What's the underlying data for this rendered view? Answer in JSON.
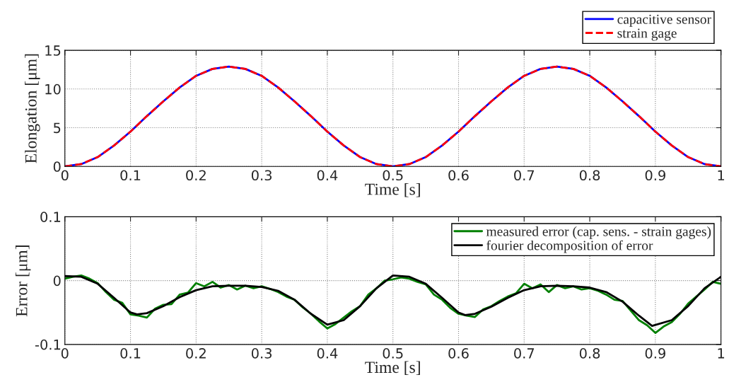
{
  "chart_data": [
    {
      "type": "line",
      "xlabel": "Time [s]",
      "ylabel": "Elongation [μm]",
      "xlim": [
        0,
        1
      ],
      "ylim": [
        0,
        15
      ],
      "xticks": [
        0,
        0.1,
        0.2,
        0.3,
        0.4,
        0.5,
        0.6,
        0.7,
        0.8,
        0.9,
        1
      ],
      "yticks": [
        0,
        5,
        10,
        15
      ],
      "grid": true,
      "legend": "top right",
      "x": [
        0,
        0.025,
        0.05,
        0.075,
        0.1,
        0.125,
        0.15,
        0.175,
        0.2,
        0.225,
        0.25,
        0.275,
        0.3,
        0.325,
        0.35,
        0.375,
        0.4,
        0.425,
        0.45,
        0.475,
        0.5,
        0.525,
        0.55,
        0.575,
        0.6,
        0.625,
        0.65,
        0.675,
        0.7,
        0.725,
        0.75,
        0.775,
        0.8,
        0.825,
        0.85,
        0.875,
        0.9,
        0.925,
        0.95,
        0.975,
        1
      ],
      "series": [
        {
          "name": "capacitive sensor",
          "color": "#0000ff",
          "line_style": "solid",
          "values": [
            0,
            0.3,
            1.2,
            2.7,
            4.5,
            6.5,
            8.4,
            10.2,
            11.7,
            12.6,
            12.9,
            12.6,
            11.7,
            10.2,
            8.4,
            6.5,
            4.5,
            2.7,
            1.2,
            0.3,
            0,
            0.3,
            1.2,
            2.7,
            4.5,
            6.5,
            8.4,
            10.2,
            11.7,
            12.6,
            12.9,
            12.6,
            11.7,
            10.2,
            8.4,
            6.5,
            4.5,
            2.7,
            1.2,
            0.3,
            0
          ]
        },
        {
          "name": "strain gage",
          "color": "#ff0000",
          "line_style": "dashed",
          "values": [
            0,
            0.3,
            1.2,
            2.7,
            4.5,
            6.5,
            8.4,
            10.2,
            11.7,
            12.6,
            12.9,
            12.6,
            11.7,
            10.2,
            8.4,
            6.5,
            4.5,
            2.7,
            1.2,
            0.3,
            0,
            0.3,
            1.2,
            2.7,
            4.5,
            6.5,
            8.4,
            10.2,
            11.7,
            12.6,
            12.9,
            12.6,
            11.7,
            10.2,
            8.4,
            6.5,
            4.5,
            2.7,
            1.2,
            0.3,
            0
          ]
        }
      ]
    },
    {
      "type": "line",
      "xlabel": "Time [s]",
      "ylabel": "Error [μm]",
      "xlim": [
        0,
        1
      ],
      "ylim": [
        -0.1,
        0.1
      ],
      "xticks": [
        0,
        0.1,
        0.2,
        0.3,
        0.4,
        0.5,
        0.6,
        0.7,
        0.8,
        0.9,
        1
      ],
      "yticks": [
        -0.1,
        0,
        0.1
      ],
      "grid": true,
      "legend": "top right",
      "series": [
        {
          "name": "measured error (cap. sens. - strain gages)",
          "color": "#008000",
          "line_style": "solid",
          "x": [
            0,
            0.0125,
            0.025,
            0.0375,
            0.05,
            0.0625,
            0.075,
            0.0875,
            0.1,
            0.1125,
            0.125,
            0.1375,
            0.15,
            0.1625,
            0.175,
            0.1875,
            0.2,
            0.2125,
            0.225,
            0.2375,
            0.25,
            0.2625,
            0.275,
            0.2875,
            0.3,
            0.3125,
            0.325,
            0.3375,
            0.35,
            0.3625,
            0.375,
            0.3875,
            0.4,
            0.4125,
            0.425,
            0.4375,
            0.45,
            0.4625,
            0.475,
            0.4875,
            0.5,
            0.5125,
            0.525,
            0.5375,
            0.55,
            0.5625,
            0.575,
            0.5875,
            0.6,
            0.6125,
            0.625,
            0.6375,
            0.65,
            0.6625,
            0.675,
            0.6875,
            0.7,
            0.7125,
            0.725,
            0.7375,
            0.75,
            0.7625,
            0.775,
            0.7875,
            0.8,
            0.8125,
            0.825,
            0.8375,
            0.85,
            0.8625,
            0.875,
            0.8875,
            0.9,
            0.9125,
            0.925,
            0.9375,
            0.95,
            0.9625,
            0.975,
            0.9875,
            1
          ],
          "values": [
            0.003,
            0.006,
            0.008,
            0.003,
            -0.004,
            -0.018,
            -0.03,
            -0.035,
            -0.053,
            -0.055,
            -0.058,
            -0.044,
            -0.038,
            -0.037,
            -0.022,
            -0.019,
            -0.004,
            -0.009,
            -0.002,
            -0.011,
            -0.007,
            -0.014,
            -0.008,
            -0.012,
            -0.009,
            -0.013,
            -0.018,
            -0.025,
            -0.03,
            -0.042,
            -0.052,
            -0.064,
            -0.075,
            -0.068,
            -0.058,
            -0.048,
            -0.04,
            -0.022,
            -0.012,
            0.0,
            0.002,
            0.005,
            0.003,
            -0.002,
            -0.006,
            -0.022,
            -0.03,
            -0.043,
            -0.052,
            -0.055,
            -0.057,
            -0.045,
            -0.04,
            -0.032,
            -0.025,
            -0.02,
            -0.005,
            -0.012,
            -0.006,
            -0.018,
            -0.007,
            -0.012,
            -0.009,
            -0.014,
            -0.012,
            -0.016,
            -0.022,
            -0.03,
            -0.032,
            -0.047,
            -0.062,
            -0.07,
            -0.082,
            -0.072,
            -0.065,
            -0.052,
            -0.036,
            -0.025,
            -0.014,
            -0.002,
            -0.005
          ]
        },
        {
          "name": "fourier decomposition of error",
          "color": "#000000",
          "line_style": "solid",
          "x": [
            0,
            0.025,
            0.05,
            0.075,
            0.1,
            0.11,
            0.125,
            0.15,
            0.175,
            0.2,
            0.225,
            0.25,
            0.275,
            0.3,
            0.325,
            0.35,
            0.375,
            0.4,
            0.425,
            0.45,
            0.475,
            0.5,
            0.525,
            0.55,
            0.575,
            0.6,
            0.61,
            0.625,
            0.65,
            0.675,
            0.7,
            0.725,
            0.75,
            0.775,
            0.8,
            0.825,
            0.85,
            0.875,
            0.895,
            0.925,
            0.95,
            0.975,
            1
          ],
          "values": [
            0.007,
            0.006,
            -0.005,
            -0.027,
            -0.05,
            -0.053,
            -0.051,
            -0.04,
            -0.026,
            -0.015,
            -0.009,
            -0.008,
            -0.008,
            -0.01,
            -0.016,
            -0.03,
            -0.052,
            -0.069,
            -0.062,
            -0.04,
            -0.012,
            0.008,
            0.006,
            -0.005,
            -0.027,
            -0.05,
            -0.054,
            -0.052,
            -0.041,
            -0.027,
            -0.015,
            -0.009,
            -0.008,
            -0.009,
            -0.011,
            -0.018,
            -0.033,
            -0.055,
            -0.071,
            -0.062,
            -0.04,
            -0.012,
            0.006
          ]
        }
      ]
    }
  ]
}
